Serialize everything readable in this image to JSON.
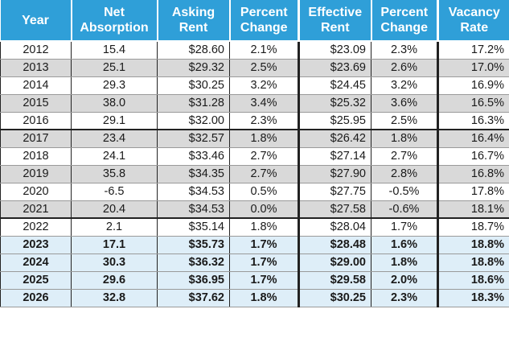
{
  "table": {
    "headers": [
      "Year",
      "Net Absorption",
      "Asking Rent",
      "Percent Change",
      "Effective Rent",
      "Percent Change",
      "Vacancy Rate"
    ],
    "rows": [
      [
        "2012",
        "15.4",
        "$28.60",
        "2.1%",
        "$23.09",
        "2.3%",
        "17.2%"
      ],
      [
        "2013",
        "25.1",
        "$29.32",
        "2.5%",
        "$23.69",
        "2.6%",
        "17.0%"
      ],
      [
        "2014",
        "29.3",
        "$30.25",
        "3.2%",
        "$24.45",
        "3.2%",
        "16.9%"
      ],
      [
        "2015",
        "38.0",
        "$31.28",
        "3.4%",
        "$25.32",
        "3.6%",
        "16.5%"
      ],
      [
        "2016",
        "29.1",
        "$32.00",
        "2.3%",
        "$25.95",
        "2.5%",
        "16.3%"
      ],
      [
        "2017",
        "23.4",
        "$32.57",
        "1.8%",
        "$26.42",
        "1.8%",
        "16.4%"
      ],
      [
        "2018",
        "24.1",
        "$33.46",
        "2.7%",
        "$27.14",
        "2.7%",
        "16.7%"
      ],
      [
        "2019",
        "35.8",
        "$34.35",
        "2.7%",
        "$27.90",
        "2.8%",
        "16.8%"
      ],
      [
        "2020",
        "-6.5",
        "$34.53",
        "0.5%",
        "$27.75",
        "-0.5%",
        "17.8%"
      ],
      [
        "2021",
        "20.4",
        "$34.53",
        "0.0%",
        "$27.58",
        "-0.6%",
        "18.1%"
      ],
      [
        "2022",
        "2.1",
        "$35.14",
        "1.8%",
        "$28.04",
        "1.7%",
        "18.7%"
      ],
      [
        "2023",
        "17.1",
        "$35.73",
        "1.7%",
        "$28.48",
        "1.6%",
        "18.8%"
      ],
      [
        "2024",
        "30.3",
        "$36.32",
        "1.7%",
        "$29.00",
        "1.8%",
        "18.8%"
      ],
      [
        "2025",
        "29.6",
        "$36.95",
        "1.7%",
        "$29.58",
        "2.0%",
        "18.6%"
      ],
      [
        "2026",
        "32.8",
        "$37.62",
        "1.8%",
        "$30.25",
        "2.3%",
        "18.3%"
      ]
    ],
    "row_styles": [
      "white",
      "gray",
      "white",
      "gray",
      "white",
      "gray",
      "white",
      "gray",
      "white",
      "gray",
      "white",
      "blue",
      "blue",
      "blue",
      "blue"
    ],
    "group_start_rows": [
      5,
      10
    ],
    "colors": {
      "header_bg": "#2f9fd8",
      "header_text": "#ffffff",
      "row_alt_gray": "#d9d9d9",
      "row_forecast_blue": "#deeef8"
    }
  }
}
